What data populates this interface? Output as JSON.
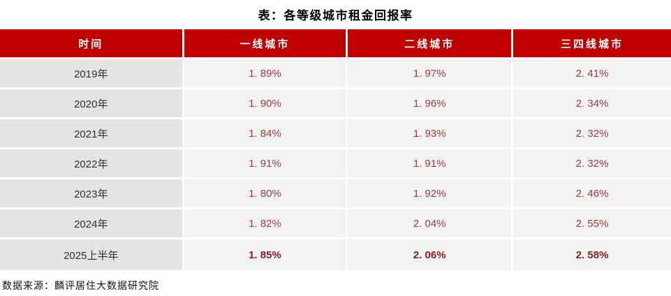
{
  "title": "表：各等级城市租金回报率",
  "source_note": "数据来源：麟评居住大数据研究院",
  "colors": {
    "header_bg": "#C00000",
    "header_text": "#FFFFFF",
    "label_cell_bg": "#E4E4E4",
    "value_cell_bg": "#F2F2F2",
    "label_text": "#303030",
    "value_text": "#9C3A3E",
    "value_text_bold": "#8B1B1F"
  },
  "table": {
    "headers": [
      "时间",
      "一线城市",
      "二线城市",
      "三四线城市"
    ],
    "rows": [
      {
        "label": "2019年",
        "values": [
          "1. 89%",
          "1. 97%",
          "2. 41%"
        ]
      },
      {
        "label": "2020年",
        "values": [
          "1. 90%",
          "1. 96%",
          "2. 34%"
        ]
      },
      {
        "label": "2021年",
        "values": [
          "1. 84%",
          "1. 93%",
          "2. 32%"
        ]
      },
      {
        "label": "2022年",
        "values": [
          "1. 91%",
          "1. 91%",
          "2. 32%"
        ]
      },
      {
        "label": "2023年",
        "values": [
          "1. 80%",
          "1. 92%",
          "2. 46%"
        ]
      },
      {
        "label": "2024年",
        "values": [
          "1. 82%",
          "2. 04%",
          "2. 55%"
        ]
      },
      {
        "label": "2025上半年",
        "values": [
          "1. 85%",
          "2. 06%",
          "2. 58%"
        ]
      }
    ]
  },
  "chart_data": {
    "type": "table",
    "title": "表：各等级城市租金回报率",
    "columns": [
      "时间",
      "一线城市",
      "二线城市",
      "三四线城市"
    ],
    "categories": [
      "2019年",
      "2020年",
      "2021年",
      "2022年",
      "2023年",
      "2024年",
      "2025上半年"
    ],
    "series": [
      {
        "name": "一线城市",
        "values": [
          1.89,
          1.9,
          1.84,
          1.91,
          1.8,
          1.82,
          1.85
        ]
      },
      {
        "name": "二线城市",
        "values": [
          1.97,
          1.96,
          1.93,
          1.91,
          1.92,
          2.04,
          2.06
        ]
      },
      {
        "name": "三四线城市",
        "values": [
          2.41,
          2.34,
          2.32,
          2.32,
          2.46,
          2.55,
          2.58
        ]
      }
    ],
    "unit": "%",
    "source": "数据来源：麟评居住大数据研究院"
  }
}
